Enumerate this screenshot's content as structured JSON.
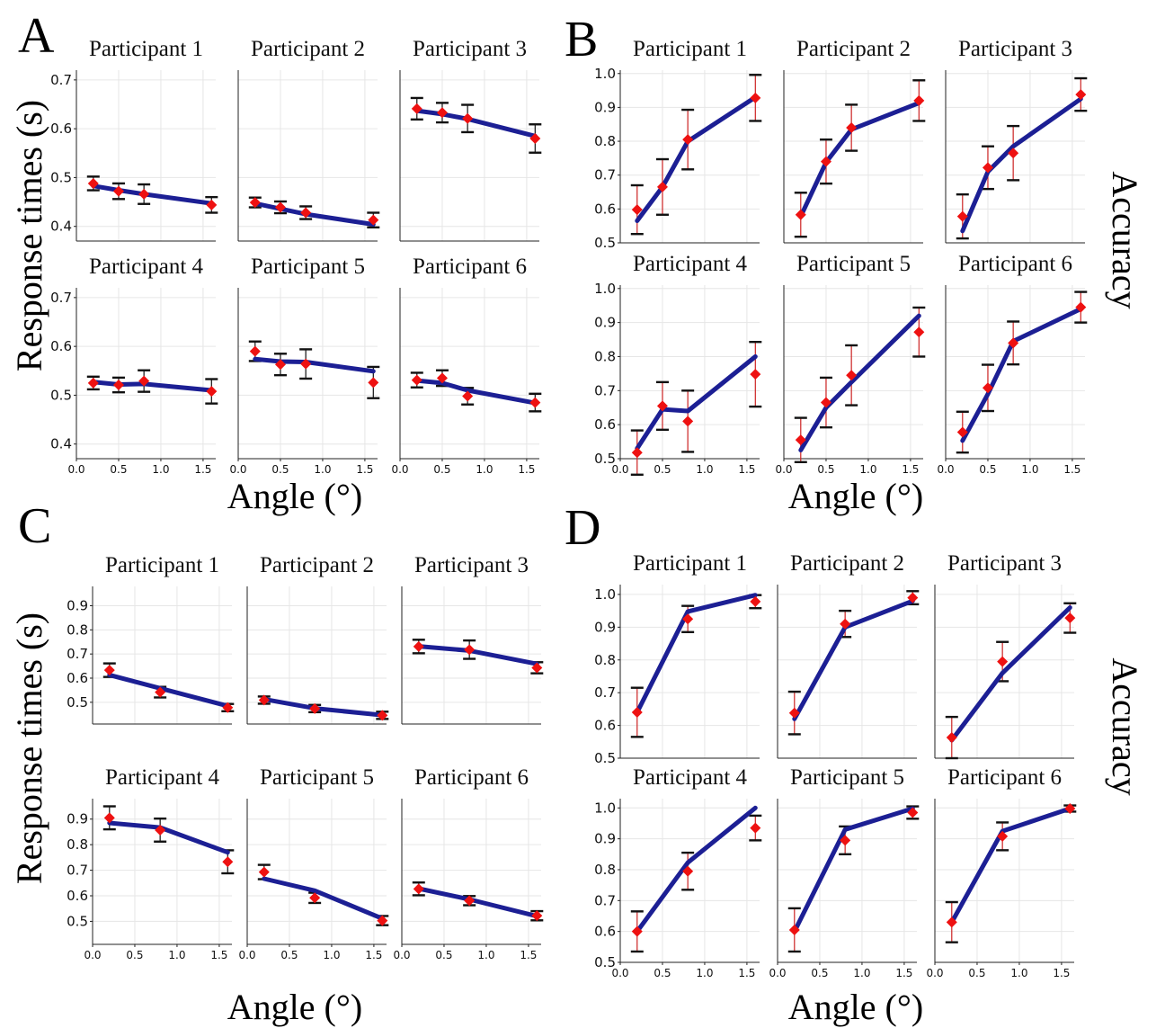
{
  "figure": {
    "panel_letters": [
      "A",
      "B",
      "C",
      "D"
    ],
    "x_axis_label": "Angle (°)",
    "rt_axis_label": "Response times (s)",
    "acc_axis_label": "Accuracy",
    "model_color": "#1c1f94",
    "data_color": "#ee1111",
    "errbar_color_rt": "#111111",
    "errbar_color_acc": "#cc2222"
  },
  "chart_data": [
    {
      "panel": "A",
      "type": "line",
      "measure": "Response times (s)",
      "xlim": [
        0,
        1.65
      ],
      "ylim": [
        0.37,
        0.72
      ],
      "xticks": [
        0.0,
        0.5,
        1.0,
        1.5
      ],
      "xtick_labels": [
        "0.0",
        "0.5",
        "1.0",
        "1.5"
      ],
      "row_yticks": [
        [
          0.4,
          0.5,
          0.6,
          0.7
        ],
        [
          0.4,
          0.5,
          0.6,
          0.7
        ]
      ],
      "row_ytick_labels": [
        [
          "0.4",
          "0.5",
          "0.6",
          "0.7"
        ],
        [
          "0.4",
          "0.5",
          "0.6",
          "0.7"
        ]
      ],
      "x": [
        0.2,
        0.5,
        0.8,
        1.6
      ],
      "subplots": [
        {
          "title": "Participant 1",
          "model": [
            0.483,
            0.474,
            0.466,
            0.447
          ],
          "data": [
            0.488,
            0.472,
            0.466,
            0.444
          ],
          "err": [
            0.014,
            0.016,
            0.02,
            0.016
          ]
        },
        {
          "title": "Participant 2",
          "model": [
            0.447,
            0.436,
            0.425,
            0.404
          ],
          "data": [
            0.449,
            0.439,
            0.428,
            0.413
          ],
          "err": [
            0.01,
            0.012,
            0.013,
            0.015
          ]
        },
        {
          "title": "Participant 3",
          "model": [
            0.637,
            0.63,
            0.62,
            0.585
          ],
          "data": [
            0.641,
            0.633,
            0.621,
            0.58
          ],
          "err": [
            0.022,
            0.02,
            0.028,
            0.029
          ]
        },
        {
          "title": "Participant 4",
          "model": [
            0.527,
            0.522,
            0.523,
            0.51
          ],
          "data": [
            0.525,
            0.521,
            0.529,
            0.508
          ],
          "err": [
            0.013,
            0.015,
            0.022,
            0.025
          ]
        },
        {
          "title": "Participant 5",
          "model": [
            0.574,
            0.569,
            0.568,
            0.549
          ],
          "data": [
            0.59,
            0.563,
            0.564,
            0.526
          ],
          "err": [
            0.02,
            0.022,
            0.03,
            0.032
          ]
        },
        {
          "title": "Participant 6",
          "model": [
            0.53,
            0.525,
            0.51,
            0.484
          ],
          "data": [
            0.531,
            0.535,
            0.498,
            0.485
          ],
          "err": [
            0.015,
            0.016,
            0.017,
            0.018
          ]
        }
      ]
    },
    {
      "panel": "B",
      "type": "line",
      "measure": "Accuracy",
      "xlim": [
        0,
        1.65
      ],
      "ylim": [
        0.5,
        1.01
      ],
      "xticks": [
        0.0,
        0.5,
        1.0,
        1.5
      ],
      "xtick_labels": [
        "0.0",
        "0.5",
        "1.0",
        "1.5"
      ],
      "row_yticks": [
        [
          0.5,
          0.6,
          0.7,
          0.8,
          0.9,
          1.0
        ],
        [
          0.5,
          0.6,
          0.7,
          0.8,
          0.9,
          1.0
        ]
      ],
      "row_ytick_labels": [
        [
          "0.5",
          "0.6",
          "0.7",
          "0.8",
          "0.9",
          "1.0"
        ],
        [
          "0.5",
          "0.6",
          "0.7",
          "0.8",
          "0.9",
          "1.0"
        ]
      ],
      "x": [
        0.2,
        0.5,
        0.8,
        1.6
      ],
      "subplots": [
        {
          "title": "Participant 1",
          "model": [
            0.565,
            0.665,
            0.8,
            0.93
          ],
          "data": [
            0.598,
            0.665,
            0.805,
            0.928
          ],
          "err": [
            0.072,
            0.082,
            0.088,
            0.068
          ]
        },
        {
          "title": "Participant 2",
          "model": [
            0.578,
            0.738,
            0.835,
            0.913
          ],
          "data": [
            0.583,
            0.74,
            0.84,
            0.92
          ],
          "err": [
            0.065,
            0.065,
            0.068,
            0.06
          ]
        },
        {
          "title": "Participant 3",
          "model": [
            0.535,
            0.71,
            0.785,
            0.925
          ],
          "data": [
            0.578,
            0.722,
            0.765,
            0.938
          ],
          "err": [
            0.065,
            0.063,
            0.08,
            0.048
          ]
        },
        {
          "title": "Participant 4",
          "model": [
            0.53,
            0.645,
            0.64,
            0.8
          ],
          "data": [
            0.518,
            0.655,
            0.61,
            0.748
          ],
          "err": [
            0.065,
            0.07,
            0.09,
            0.095
          ]
        },
        {
          "title": "Participant 5",
          "model": [
            0.525,
            0.65,
            0.725,
            0.92
          ],
          "data": [
            0.555,
            0.665,
            0.745,
            0.872
          ],
          "err": [
            0.065,
            0.073,
            0.088,
            0.072
          ]
        },
        {
          "title": "Participant 6",
          "model": [
            0.553,
            0.69,
            0.845,
            0.94
          ],
          "data": [
            0.578,
            0.708,
            0.84,
            0.945
          ],
          "err": [
            0.06,
            0.068,
            0.063,
            0.045
          ]
        }
      ]
    },
    {
      "panel": "C",
      "type": "line",
      "measure": "Response times (s)",
      "xlim": [
        0,
        1.65
      ],
      "ylim": [
        0.41,
        0.98
      ],
      "xticks": [
        0.0,
        0.5,
        1.0,
        1.5
      ],
      "xtick_labels": [
        "0.0",
        "0.5",
        "1.0",
        "1.5"
      ],
      "row_yticks": [
        [
          0.5,
          0.6,
          0.7,
          0.8,
          0.9
        ],
        [
          0.5,
          0.6,
          0.7,
          0.8,
          0.9
        ]
      ],
      "row_ytick_labels": [
        [
          "0.5",
          "0.6",
          "0.7",
          "0.8",
          "0.9"
        ],
        [
          "0.5",
          "0.6",
          "0.7",
          "0.8",
          "0.9"
        ]
      ],
      "x": [
        0.2,
        0.8,
        1.6
      ],
      "subplots": [
        {
          "title": "Participant 1",
          "model": [
            0.613,
            0.558,
            0.485
          ],
          "data": [
            0.633,
            0.542,
            0.478
          ],
          "err": [
            0.028,
            0.022,
            0.015
          ]
        },
        {
          "title": "Participant 2",
          "model": [
            0.513,
            0.475,
            0.447
          ],
          "data": [
            0.509,
            0.474,
            0.446
          ],
          "err": [
            0.015,
            0.015,
            0.015
          ]
        },
        {
          "title": "Participant 3",
          "model": [
            0.732,
            0.714,
            0.659
          ],
          "data": [
            0.731,
            0.718,
            0.643
          ],
          "err": [
            0.028,
            0.038,
            0.023
          ]
        },
        {
          "title": "Participant 4",
          "model": [
            0.885,
            0.867,
            0.77
          ],
          "data": [
            0.905,
            0.857,
            0.733
          ],
          "err": [
            0.045,
            0.045,
            0.045
          ]
        },
        {
          "title": "Participant 5",
          "model": [
            0.667,
            0.62,
            0.511
          ],
          "data": [
            0.693,
            0.592,
            0.503
          ],
          "err": [
            0.028,
            0.02,
            0.018
          ]
        },
        {
          "title": "Participant 6",
          "model": [
            0.628,
            0.586,
            0.52
          ],
          "data": [
            0.627,
            0.581,
            0.522
          ],
          "err": [
            0.025,
            0.018,
            0.018
          ]
        }
      ]
    },
    {
      "panel": "D",
      "type": "line",
      "measure": "Accuracy",
      "xlim": [
        0,
        1.65
      ],
      "ylim": [
        0.5,
        1.03
      ],
      "xticks": [
        0.0,
        0.5,
        1.0,
        1.5
      ],
      "xtick_labels": [
        "0.0",
        "0.5",
        "1.0",
        "1.5"
      ],
      "row_yticks": [
        [
          0.5,
          0.6,
          0.7,
          0.8,
          0.9,
          1.0
        ],
        [
          0.5,
          0.6,
          0.7,
          0.8,
          0.9,
          1.0
        ]
      ],
      "row_ytick_labels": [
        [
          "0.5",
          "0.6",
          "0.7",
          "0.8",
          "0.9",
          "1.0"
        ],
        [
          "0.5",
          "0.6",
          "0.7",
          "0.8",
          "0.9",
          "1.0"
        ]
      ],
      "x": [
        0.2,
        0.8,
        1.6
      ],
      "subplots": [
        {
          "title": "Participant 1",
          "model": [
            0.64,
            0.948,
            0.998
          ],
          "data": [
            0.64,
            0.925,
            0.978
          ],
          "err": [
            0.075,
            0.04,
            0.02
          ]
        },
        {
          "title": "Participant 2",
          "model": [
            0.62,
            0.9,
            0.98
          ],
          "data": [
            0.638,
            0.91,
            0.99
          ],
          "err": [
            0.065,
            0.04,
            0.02
          ]
        },
        {
          "title": "Participant 3",
          "model": [
            0.555,
            0.76,
            0.96
          ],
          "data": [
            0.563,
            0.795,
            0.928
          ],
          "err": [
            0.063,
            0.06,
            0.045
          ]
        },
        {
          "title": "Participant 4",
          "model": [
            0.6,
            0.823,
            1.0
          ],
          "data": [
            0.6,
            0.795,
            0.935
          ],
          "err": [
            0.065,
            0.06,
            0.04
          ]
        },
        {
          "title": "Participant 5",
          "model": [
            0.6,
            0.93,
            0.998
          ],
          "data": [
            0.605,
            0.895,
            0.985
          ],
          "err": [
            0.07,
            0.045,
            0.02
          ]
        },
        {
          "title": "Participant 6",
          "model": [
            0.63,
            0.925,
            0.998
          ],
          "data": [
            0.63,
            0.908,
            0.998
          ],
          "err": [
            0.065,
            0.045,
            0.01
          ]
        }
      ]
    }
  ]
}
